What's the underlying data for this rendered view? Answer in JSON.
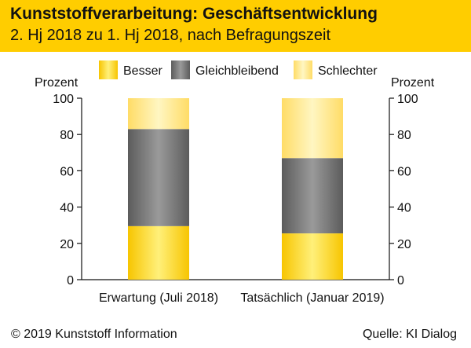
{
  "header": {
    "title": "Kunststoffverarbeitung: Geschäftsentwicklung",
    "subtitle": "2. Hj 2018 zu 1. Hj 2018, nach Befragungszeit"
  },
  "footer": {
    "copyright": "© 2019 Kunststoff Information",
    "source": "Quelle: KI Dialog"
  },
  "colors": {
    "header_bg": "#ffcd00",
    "besser": "#ffcd00",
    "gleichbleibend": "#707070",
    "schlechter": "#ffe27a"
  },
  "chart_data": {
    "type": "bar",
    "stacked": true,
    "categories": [
      "Erwartung (Juli 2018)",
      "Tatsächlich (Januar 2019)"
    ],
    "series": [
      {
        "name": "Besser",
        "values": [
          29.5,
          25.5
        ]
      },
      {
        "name": "Gleichbleibend",
        "values": [
          53.5,
          41.5
        ]
      },
      {
        "name": "Schlechter",
        "values": [
          17,
          33
        ]
      }
    ],
    "ylabel_left": "Prozent",
    "ylabel_right": "Prozent",
    "ylim": [
      0,
      100
    ],
    "yticks": [
      0,
      20,
      40,
      60,
      80,
      100
    ],
    "legend_position": "top"
  }
}
